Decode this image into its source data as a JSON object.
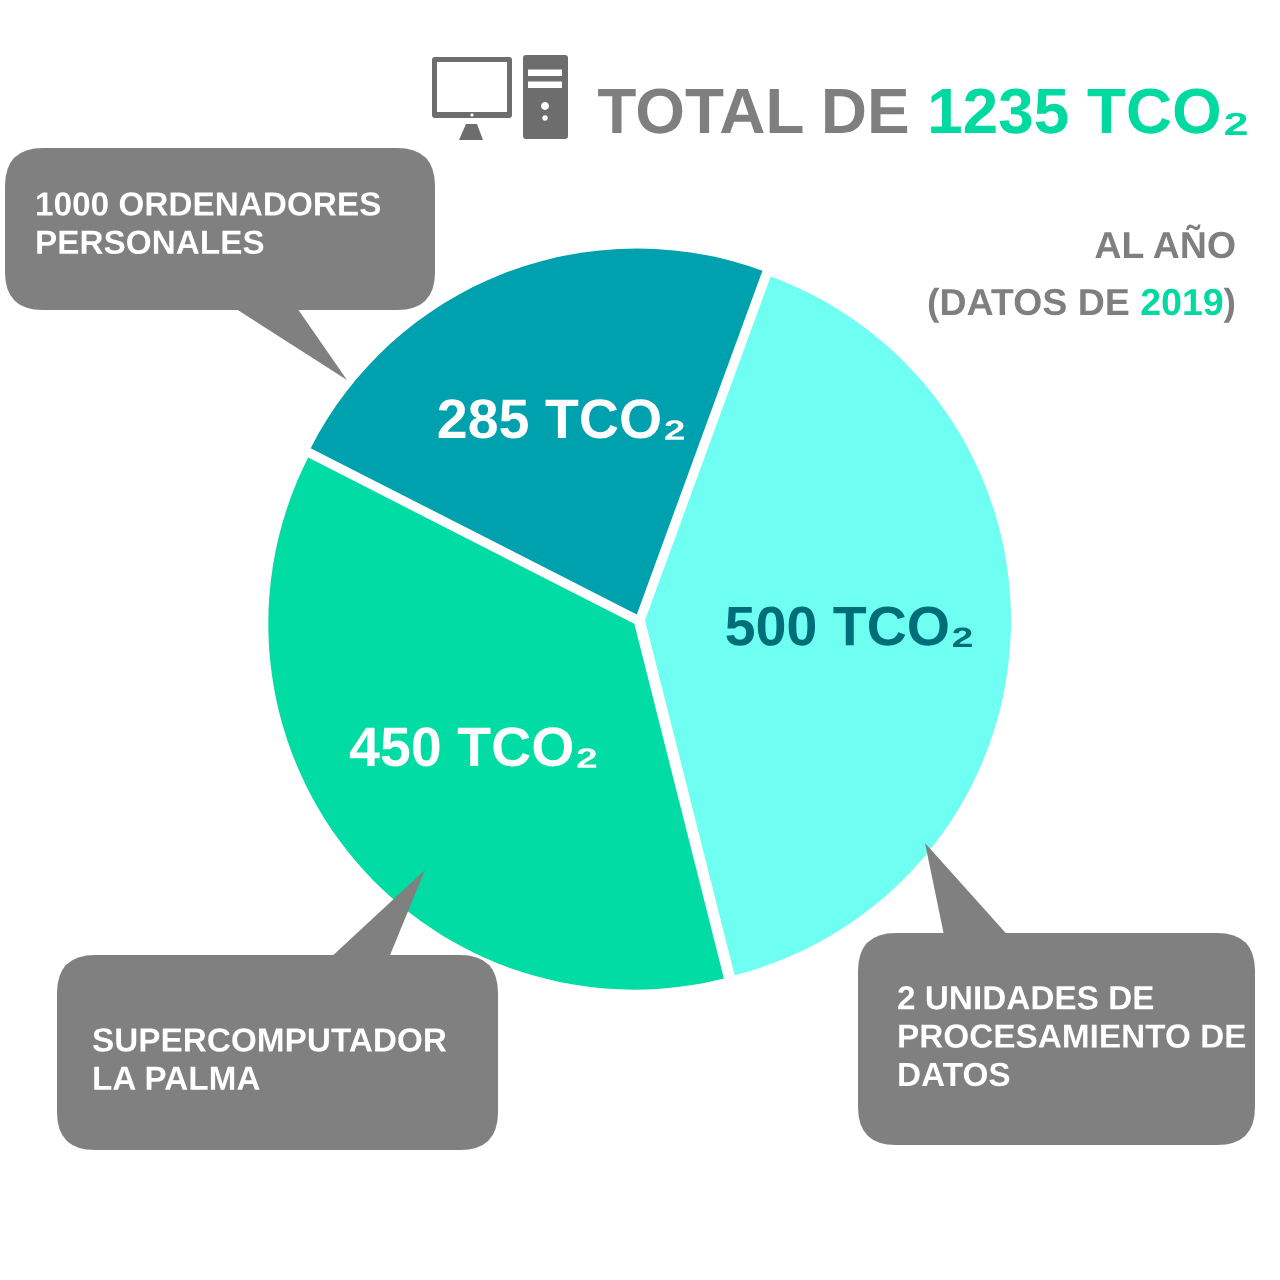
{
  "chart_data": {
    "type": "pie",
    "title": "TOTAL DE 1235 TCO₂",
    "subtitle": "AL AÑO\n(DATOS DE 2019)",
    "categories": [
      "1000 ORDENADORES\nPERSONALES",
      "2 UNIDADES DE\nPROCESAMIENTO DE\nDATOS",
      "SUPERCOMPUTADOR\nLA PALMA"
    ],
    "values": [
      285,
      500,
      450
    ],
    "colors": [
      "#00a1ae",
      "#6ffff2",
      "#00dca4"
    ],
    "value_labels": [
      "285 TCO₂",
      "500 TCO₂",
      "450 TCO₂"
    ]
  }
}
